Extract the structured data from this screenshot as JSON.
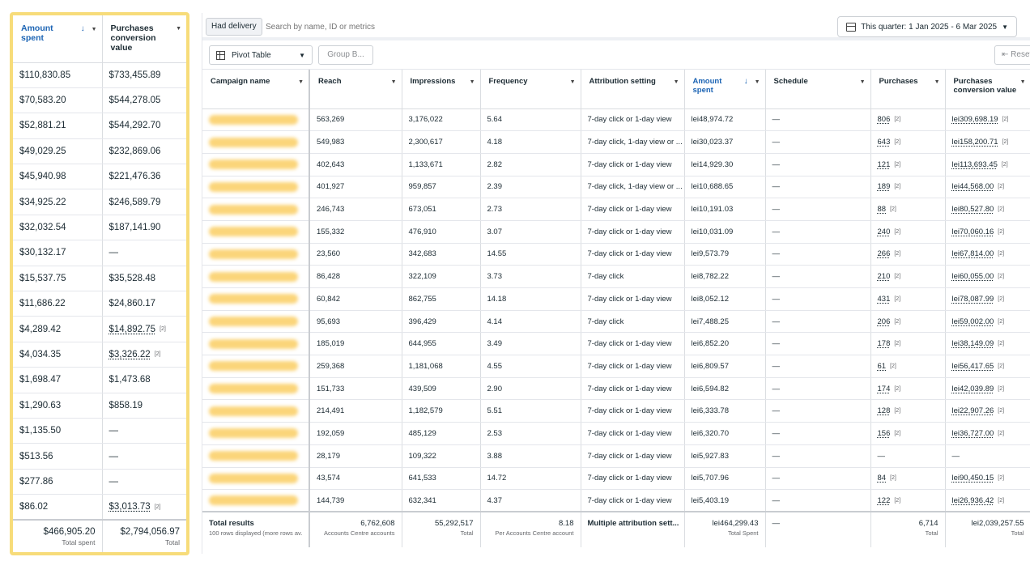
{
  "left_table": {
    "headers": [
      {
        "label": "Amount spent",
        "sorted": true
      },
      {
        "label": "Purchases conversion value",
        "sorted": false
      }
    ],
    "rows": [
      {
        "amount": "$110,830.85",
        "value": "$733,455.89"
      },
      {
        "amount": "$70,583.20",
        "value": "$544,278.05"
      },
      {
        "amount": "$52,881.21",
        "value": "$544,292.70"
      },
      {
        "amount": "$49,029.25",
        "value": "$232,869.06"
      },
      {
        "amount": "$45,940.98",
        "value": "$221,476.36"
      },
      {
        "amount": "$34,925.22",
        "value": "$246,589.79"
      },
      {
        "amount": "$32,032.54",
        "value": "$187,141.90"
      },
      {
        "amount": "$30,132.17",
        "value": "—"
      },
      {
        "amount": "$15,537.75",
        "value": "$35,528.48"
      },
      {
        "amount": "$11,686.22",
        "value": "$24,860.17"
      },
      {
        "amount": "$4,289.42",
        "value": "$14,892.75",
        "tag": "[2]"
      },
      {
        "amount": "$4,034.35",
        "value": "$3,326.22",
        "tag": "[2]"
      },
      {
        "amount": "$1,698.47",
        "value": "$1,473.68"
      },
      {
        "amount": "$1,290.63",
        "value": "$858.19"
      },
      {
        "amount": "$1,135.50",
        "value": "—"
      },
      {
        "amount": "$513.56",
        "value": "—"
      },
      {
        "amount": "$277.86",
        "value": "—"
      },
      {
        "amount": "$86.02",
        "value": "$3,013.73",
        "tag": "[2]"
      }
    ],
    "totals": {
      "amount": "$466,905.20",
      "amount_label": "Total spent",
      "value": "$2,794,056.97",
      "value_label": "Total"
    }
  },
  "topbar": {
    "filter_chip": "Had delivery",
    "search_placeholder": "Search by name, ID or metrics",
    "date_range": "This quarter: 1 Jan 2025 - 6 Mar 2025"
  },
  "toolbar": {
    "pivot_label": "Pivot Table",
    "group_by_label": "Group B...",
    "reset_label": "Reset"
  },
  "main_table": {
    "headers": [
      {
        "label": "Campaign name"
      },
      {
        "label": "Reach"
      },
      {
        "label": "Impressions"
      },
      {
        "label": "Frequency"
      },
      {
        "label": "Attribution setting"
      },
      {
        "label": "Amount spent",
        "sorted": true
      },
      {
        "label": "Schedule"
      },
      {
        "label": "Purchases"
      },
      {
        "label": "Purchases conversion value"
      }
    ],
    "rows": [
      {
        "reach": "563,269",
        "impressions": "3,176,022",
        "frequency": "5.64",
        "attribution": "7-day click or 1-day view",
        "spent": "lei48,974.72",
        "schedule": "—",
        "purchases": "806",
        "value": "lei309,698.19"
      },
      {
        "reach": "549,983",
        "impressions": "2,300,617",
        "frequency": "4.18",
        "attribution": "7-day click, 1-day view or ...",
        "spent": "lei30,023.37",
        "schedule": "—",
        "purchases": "643",
        "value": "lei158,200.71"
      },
      {
        "reach": "402,643",
        "impressions": "1,133,671",
        "frequency": "2.82",
        "attribution": "7-day click or 1-day view",
        "spent": "lei14,929.30",
        "schedule": "—",
        "purchases": "121",
        "value": "lei113,693.45"
      },
      {
        "reach": "401,927",
        "impressions": "959,857",
        "frequency": "2.39",
        "attribution": "7-day click, 1-day view or ...",
        "spent": "lei10,688.65",
        "schedule": "—",
        "purchases": "189",
        "value": "lei44,568.00"
      },
      {
        "reach": "246,743",
        "impressions": "673,051",
        "frequency": "2.73",
        "attribution": "7-day click or 1-day view",
        "spent": "lei10,191.03",
        "schedule": "—",
        "purchases": "88",
        "value": "lei80,527.80"
      },
      {
        "reach": "155,332",
        "impressions": "476,910",
        "frequency": "3.07",
        "attribution": "7-day click or 1-day view",
        "spent": "lei10,031.09",
        "schedule": "—",
        "purchases": "240",
        "value": "lei70,060.16"
      },
      {
        "reach": "23,560",
        "impressions": "342,683",
        "frequency": "14.55",
        "attribution": "7-day click or 1-day view",
        "spent": "lei9,573.79",
        "schedule": "—",
        "purchases": "266",
        "value": "lei67,814.00"
      },
      {
        "reach": "86,428",
        "impressions": "322,109",
        "frequency": "3.73",
        "attribution": "7-day click",
        "spent": "lei8,782.22",
        "schedule": "—",
        "purchases": "210",
        "value": "lei60,055.00"
      },
      {
        "reach": "60,842",
        "impressions": "862,755",
        "frequency": "14.18",
        "attribution": "7-day click or 1-day view",
        "spent": "lei8,052.12",
        "schedule": "—",
        "purchases": "431",
        "value": "lei78,087.99"
      },
      {
        "reach": "95,693",
        "impressions": "396,429",
        "frequency": "4.14",
        "attribution": "7-day click",
        "spent": "lei7,488.25",
        "schedule": "—",
        "purchases": "206",
        "value": "lei59,002.00"
      },
      {
        "reach": "185,019",
        "impressions": "644,955",
        "frequency": "3.49",
        "attribution": "7-day click or 1-day view",
        "spent": "lei6,852.20",
        "schedule": "—",
        "purchases": "178",
        "value": "lei38,149.09"
      },
      {
        "reach": "259,368",
        "impressions": "1,181,068",
        "frequency": "4.55",
        "attribution": "7-day click or 1-day view",
        "spent": "lei6,809.57",
        "schedule": "—",
        "purchases": "61",
        "value": "lei56,417.65"
      },
      {
        "reach": "151,733",
        "impressions": "439,509",
        "frequency": "2.90",
        "attribution": "7-day click or 1-day view",
        "spent": "lei6,594.82",
        "schedule": "—",
        "purchases": "174",
        "value": "lei42,039.89"
      },
      {
        "reach": "214,491",
        "impressions": "1,182,579",
        "frequency": "5.51",
        "attribution": "7-day click or 1-day view",
        "spent": "lei6,333.78",
        "schedule": "—",
        "purchases": "128",
        "value": "lei22,907.26"
      },
      {
        "reach": "192,059",
        "impressions": "485,129",
        "frequency": "2.53",
        "attribution": "7-day click or 1-day view",
        "spent": "lei6,320.70",
        "schedule": "—",
        "purchases": "156",
        "value": "lei36,727.00"
      },
      {
        "reach": "28,179",
        "impressions": "109,322",
        "frequency": "3.88",
        "attribution": "7-day click or 1-day view",
        "spent": "lei5,927.83",
        "schedule": "—",
        "purchases": "—",
        "value": "—"
      },
      {
        "reach": "43,574",
        "impressions": "641,533",
        "frequency": "14.72",
        "attribution": "7-day click or 1-day view",
        "spent": "lei5,707.96",
        "schedule": "—",
        "purchases": "84",
        "value": "lei90,450.15"
      },
      {
        "reach": "144,739",
        "impressions": "632,341",
        "frequency": "4.37",
        "attribution": "7-day click or 1-day view",
        "spent": "lei5,403.19",
        "schedule": "—",
        "purchases": "122",
        "value": "lei26,936.42"
      }
    ],
    "tag": "[2]",
    "totals": {
      "label": "Total results",
      "sub": "100 rows displayed (more rows av...",
      "reach": "6,762,608",
      "reach_sub": "Accounts Centre accounts",
      "impressions": "55,292,517",
      "impressions_sub": "Total",
      "frequency": "8.18",
      "frequency_sub": "Per Accounts Centre account",
      "attribution": "Multiple attribution sett...",
      "spent": "lei464,299.43",
      "spent_sub": "Total Spent",
      "schedule": "—",
      "purchases": "6,714",
      "purchases_sub": "Total",
      "value": "lei2,039,257.55",
      "value_sub": "Total"
    }
  },
  "colors": {
    "highlight_border": "#f7dc7a",
    "sorted_header": "#1c64b4",
    "redaction": "#fbd57a"
  }
}
